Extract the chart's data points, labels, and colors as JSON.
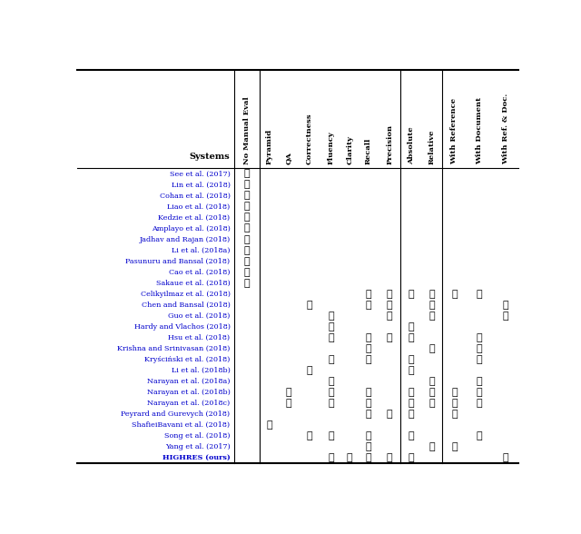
{
  "systems": [
    "See et al. (2017)",
    "Lin et al. (2018)",
    "Cohan et al. (2018)",
    "Liao et al. (2018)",
    "Kedzie et al. (2018)",
    "Amplayo et al. (2018)",
    "Jadhav and Rajan (2018)",
    "Li et al. (2018a)",
    "Pasunuru and Bansal (2018)",
    "Cao et al. (2018)",
    "Sakaue et al. (2018)",
    "Celikyilmaz et al. (2018)",
    "Chen and Bansal (2018)",
    "Guo et al. (2018)",
    "Hardy and Vlachos (2018)",
    "Hsu et al. (2018)",
    "Krishna and Srinivasan (2018)",
    "Kryściński et al. (2018)",
    "Li et al. (2018b)",
    "Narayan et al. (2018a)",
    "Narayan et al. (2018b)",
    "Narayan et al. (2018c)",
    "Peyrard and Gurevych (2018)",
    "ShafieiBavani et al. (2018)",
    "Song et al. (2018)",
    "Yang et al. (2017)",
    "HIGHRES (ours)"
  ],
  "columns": [
    "No Manual Eval",
    "Pyramid",
    "QA",
    "Correctness",
    "Fluency",
    "Clarity",
    "Recall",
    "Precision",
    "Absolute",
    "Relative",
    "With Reference",
    "With Document",
    "With Ref. & Doc."
  ],
  "checks": [
    [
      1,
      0,
      0,
      0,
      0,
      0,
      0,
      0,
      0,
      0,
      0,
      0,
      0
    ],
    [
      1,
      0,
      0,
      0,
      0,
      0,
      0,
      0,
      0,
      0,
      0,
      0,
      0
    ],
    [
      1,
      0,
      0,
      0,
      0,
      0,
      0,
      0,
      0,
      0,
      0,
      0,
      0
    ],
    [
      1,
      0,
      0,
      0,
      0,
      0,
      0,
      0,
      0,
      0,
      0,
      0,
      0
    ],
    [
      1,
      0,
      0,
      0,
      0,
      0,
      0,
      0,
      0,
      0,
      0,
      0,
      0
    ],
    [
      1,
      0,
      0,
      0,
      0,
      0,
      0,
      0,
      0,
      0,
      0,
      0,
      0
    ],
    [
      1,
      0,
      0,
      0,
      0,
      0,
      0,
      0,
      0,
      0,
      0,
      0,
      0
    ],
    [
      1,
      0,
      0,
      0,
      0,
      0,
      0,
      0,
      0,
      0,
      0,
      0,
      0
    ],
    [
      1,
      0,
      0,
      0,
      0,
      0,
      0,
      0,
      0,
      0,
      0,
      0,
      0
    ],
    [
      1,
      0,
      0,
      0,
      0,
      0,
      0,
      0,
      0,
      0,
      0,
      0,
      0
    ],
    [
      1,
      0,
      0,
      0,
      0,
      0,
      0,
      0,
      0,
      0,
      0,
      0,
      0
    ],
    [
      0,
      0,
      0,
      0,
      0,
      0,
      1,
      1,
      1,
      1,
      1,
      1,
      0
    ],
    [
      0,
      0,
      0,
      1,
      0,
      0,
      1,
      1,
      0,
      1,
      0,
      0,
      1
    ],
    [
      0,
      0,
      0,
      0,
      1,
      0,
      0,
      1,
      0,
      1,
      0,
      0,
      1
    ],
    [
      0,
      0,
      0,
      0,
      1,
      0,
      0,
      0,
      1,
      0,
      0,
      0,
      0
    ],
    [
      0,
      0,
      0,
      0,
      1,
      0,
      1,
      1,
      1,
      0,
      0,
      1,
      0
    ],
    [
      0,
      0,
      0,
      0,
      0,
      0,
      1,
      0,
      0,
      1,
      0,
      1,
      0
    ],
    [
      0,
      0,
      0,
      0,
      1,
      0,
      1,
      0,
      1,
      0,
      0,
      1,
      0
    ],
    [
      0,
      0,
      0,
      1,
      0,
      0,
      0,
      0,
      1,
      0,
      0,
      0,
      0
    ],
    [
      0,
      0,
      0,
      0,
      1,
      0,
      0,
      0,
      0,
      1,
      0,
      1,
      0
    ],
    [
      0,
      0,
      1,
      0,
      1,
      0,
      1,
      0,
      1,
      1,
      1,
      1,
      0
    ],
    [
      0,
      0,
      1,
      0,
      1,
      0,
      1,
      0,
      1,
      1,
      1,
      1,
      0
    ],
    [
      0,
      0,
      0,
      0,
      0,
      0,
      1,
      1,
      1,
      0,
      1,
      0,
      0
    ],
    [
      0,
      1,
      0,
      0,
      0,
      0,
      0,
      0,
      0,
      0,
      0,
      0,
      0
    ],
    [
      0,
      0,
      0,
      1,
      1,
      0,
      1,
      0,
      1,
      0,
      0,
      1,
      0
    ],
    [
      0,
      0,
      0,
      0,
      0,
      0,
      1,
      0,
      0,
      1,
      1,
      0,
      0
    ],
    [
      0,
      0,
      0,
      0,
      1,
      1,
      1,
      1,
      1,
      0,
      0,
      0,
      1
    ]
  ],
  "system_color": "#0000CC",
  "check_color": "#000000",
  "header_color": "#000000",
  "highres_bold": true,
  "sep_after_cols": [
    0,
    7,
    9
  ],
  "title": "Systems",
  "fig_width": 6.4,
  "fig_height": 5.88,
  "dpi": 100
}
